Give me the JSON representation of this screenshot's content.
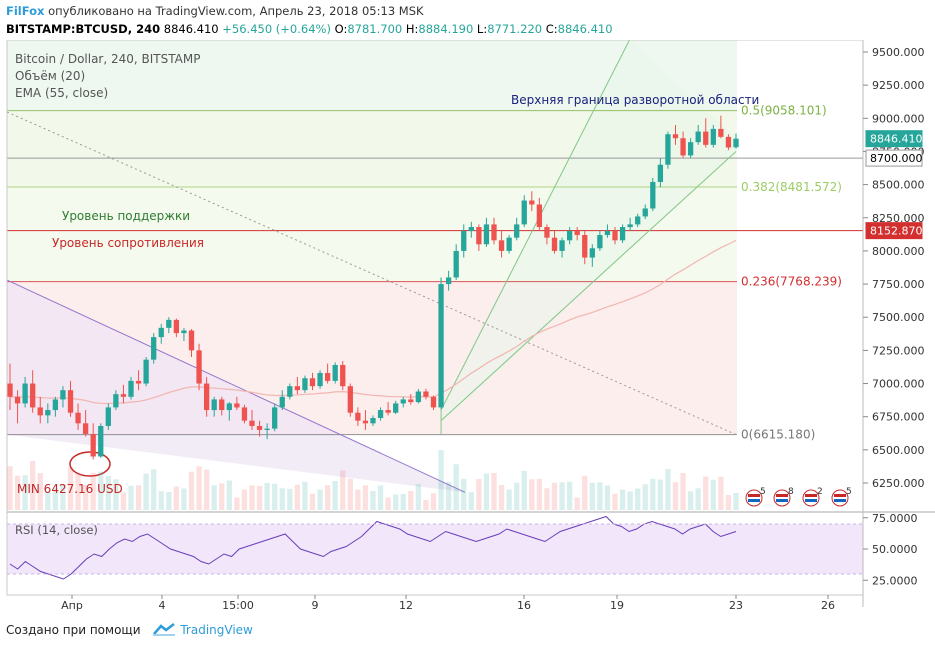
{
  "header": {
    "brand": "FilFox",
    "published": " опубликовано на TradingView.com, Апрель 23, 2018 05:13 MSK",
    "symbol": "BITSTAMP:BTCUSD, 240",
    "last": " 8846.410 ",
    "change": "+56.450 (+0.64%)",
    "o_label": " O:",
    "o_value": "8781.700",
    "h_label": " H:",
    "h_value": "8884.190",
    "l_label": " L:",
    "l_value": "8771.220",
    "c_label": " C:",
    "c_value": "8846.410"
  },
  "legend": {
    "line1": "Bitcoin / Dollar, 240, BITSTAMP",
    "line2": "Объём (20)",
    "line3": "EMA (55, close)"
  },
  "annotations": {
    "upper": "Верхняя граница разворотной области",
    "support": "Уровень поддержки",
    "resistance": "Уровень сопротивления",
    "min": "MIN 6427.16 USD"
  },
  "rsi_label": "RSI (14, close)",
  "footer": {
    "created": "Создано при помощи",
    "brand": "TradingView"
  },
  "colors": {
    "up": "#26a69a",
    "down": "#ef5350",
    "fib_green": "#8bc34a",
    "fib_red": "#d32f2f",
    "support_line": "#e57373",
    "ema": "#f2b5b0",
    "rsi": "#6a3dba",
    "brand": "#2e9cd9"
  },
  "chart_data": {
    "type": "candlestick",
    "symbol": "BITSTAMP:BTCUSD",
    "interval": "240",
    "ylim": [
      6000,
      9600
    ],
    "y_ticks": [
      6250,
      6500,
      6750,
      7000,
      7250,
      7500,
      7750,
      8000,
      8250,
      8500,
      8750,
      9000,
      9250,
      9500
    ],
    "y_tick_labels": [
      "6250.000",
      "6500.000",
      "6750.000",
      "7000.000",
      "7250.000",
      "7500.000",
      "7750.000",
      "8000.000",
      "8250.000",
      "8500.000",
      "8750.000",
      "9000.000",
      "9250.000",
      "9500.000"
    ],
    "x_ticks": [
      "Апр",
      "4",
      "15:00",
      "9",
      "12",
      "16",
      "19",
      "23",
      "26"
    ],
    "price_tags": [
      {
        "label": "8846.410",
        "value": 8846.41,
        "style": "up"
      },
      {
        "label": "8700.000",
        "value": 8700,
        "style": "plain"
      },
      {
        "label": "8152.870",
        "value": 8152.87,
        "style": "down"
      }
    ],
    "fib_levels": [
      {
        "ratio": "0.5",
        "price": 9058.101,
        "label": "0.5(9058.101)",
        "color": "#7cb342"
      },
      {
        "ratio": "0.382",
        "price": 8481.572,
        "label": "0.382(8481.572)",
        "color": "#9ccc65"
      },
      {
        "ratio": "0.236",
        "price": 7768.239,
        "label": "0.236(7768.239)",
        "color": "#d32f2f"
      },
      {
        "ratio": "0",
        "price": 6615.18,
        "label": "0(6615.180)",
        "color": "#777777"
      }
    ],
    "support_level": 8152.87,
    "candles": [
      [
        7000,
        7150,
        6800,
        6900
      ],
      [
        6900,
        6950,
        6700,
        6850
      ],
      [
        6850,
        7050,
        6820,
        7000
      ],
      [
        7000,
        7100,
        6780,
        6820
      ],
      [
        6820,
        6900,
        6700,
        6760
      ],
      [
        6760,
        6850,
        6700,
        6800
      ],
      [
        6800,
        6900,
        6750,
        6880
      ],
      [
        6880,
        6980,
        6820,
        6950
      ],
      [
        6950,
        7020,
        6750,
        6780
      ],
      [
        6780,
        6850,
        6650,
        6700
      ],
      [
        6700,
        6800,
        6600,
        6620
      ],
      [
        6620,
        6700,
        6427,
        6450
      ],
      [
        6450,
        6700,
        6440,
        6680
      ],
      [
        6680,
        6850,
        6650,
        6820
      ],
      [
        6820,
        6950,
        6800,
        6920
      ],
      [
        6920,
        6990,
        6850,
        6900
      ],
      [
        6900,
        7050,
        6880,
        7020
      ],
      [
        7020,
        7100,
        6950,
        7000
      ],
      [
        7000,
        7200,
        6980,
        7180
      ],
      [
        7180,
        7380,
        7150,
        7350
      ],
      [
        7350,
        7450,
        7300,
        7420
      ],
      [
        7420,
        7500,
        7380,
        7480
      ],
      [
        7480,
        7490,
        7350,
        7380
      ],
      [
        7380,
        7420,
        7320,
        7400
      ],
      [
        7400,
        7410,
        7200,
        7250
      ],
      [
        7250,
        7300,
        6950,
        7000
      ],
      [
        7000,
        7050,
        6750,
        6800
      ],
      [
        6800,
        6900,
        6750,
        6880
      ],
      [
        6880,
        6900,
        6760,
        6800
      ],
      [
        6800,
        6860,
        6720,
        6850
      ],
      [
        6850,
        6900,
        6800,
        6820
      ],
      [
        6820,
        6840,
        6700,
        6720
      ],
      [
        6720,
        6800,
        6650,
        6680
      ],
      [
        6680,
        6720,
        6600,
        6650
      ],
      [
        6650,
        6700,
        6580,
        6660
      ],
      [
        6660,
        6850,
        6640,
        6820
      ],
      [
        6820,
        6950,
        6800,
        6900
      ],
      [
        6900,
        7000,
        6880,
        6980
      ],
      [
        6980,
        7050,
        6920,
        6950
      ],
      [
        6950,
        7060,
        6930,
        7040
      ],
      [
        7040,
        7080,
        6950,
        6980
      ],
      [
        6980,
        7100,
        6960,
        7080
      ],
      [
        7080,
        7150,
        7000,
        7020
      ],
      [
        7020,
        7160,
        7000,
        7140
      ],
      [
        7140,
        7170,
        6950,
        6980
      ],
      [
        6980,
        7000,
        6750,
        6780
      ],
      [
        6780,
        6820,
        6680,
        6720
      ],
      [
        6720,
        6800,
        6650,
        6700
      ],
      [
        6700,
        6760,
        6680,
        6740
      ],
      [
        6740,
        6820,
        6720,
        6800
      ],
      [
        6800,
        6860,
        6760,
        6780
      ],
      [
        6780,
        6870,
        6770,
        6850
      ],
      [
        6850,
        6900,
        6820,
        6880
      ],
      [
        6880,
        6920,
        6840,
        6860
      ],
      [
        6860,
        6960,
        6850,
        6940
      ],
      [
        6940,
        6960,
        6880,
        6900
      ],
      [
        6900,
        6910,
        6800,
        6820
      ],
      [
        6820,
        7800,
        6810,
        7750
      ],
      [
        7750,
        7850,
        7700,
        7800
      ],
      [
        7800,
        8050,
        7780,
        8000
      ],
      [
        8000,
        8200,
        7950,
        8150
      ],
      [
        8150,
        8220,
        8100,
        8180
      ],
      [
        8180,
        8200,
        8000,
        8050
      ],
      [
        8050,
        8250,
        8030,
        8200
      ],
      [
        8200,
        8250,
        8050,
        8080
      ],
      [
        8080,
        8150,
        7950,
        8000
      ],
      [
        8000,
        8120,
        7980,
        8100
      ],
      [
        8100,
        8250,
        8080,
        8200
      ],
      [
        8200,
        8420,
        8180,
        8380
      ],
      [
        8380,
        8450,
        8300,
        8350
      ],
      [
        8350,
        8400,
        8150,
        8180
      ],
      [
        8180,
        8200,
        8050,
        8100
      ],
      [
        8100,
        8150,
        7980,
        8000
      ],
      [
        8000,
        8100,
        7950,
        8080
      ],
      [
        8080,
        8180,
        8050,
        8150
      ],
      [
        8150,
        8180,
        8080,
        8120
      ],
      [
        8120,
        8150,
        7900,
        7950
      ],
      [
        7950,
        8050,
        7880,
        8020
      ],
      [
        8020,
        8150,
        8000,
        8120
      ],
      [
        8120,
        8200,
        8100,
        8150
      ],
      [
        8150,
        8180,
        8050,
        8080
      ],
      [
        8080,
        8200,
        8060,
        8180
      ],
      [
        8180,
        8250,
        8150,
        8200
      ],
      [
        8200,
        8280,
        8180,
        8260
      ],
      [
        8260,
        8350,
        8240,
        8320
      ],
      [
        8320,
        8550,
        8300,
        8520
      ],
      [
        8520,
        8700,
        8480,
        8650
      ],
      [
        8650,
        8900,
        8620,
        8880
      ],
      [
        8880,
        8950,
        8800,
        8850
      ],
      [
        8850,
        8900,
        8700,
        8720
      ],
      [
        8720,
        8850,
        8700,
        8820
      ],
      [
        8820,
        8950,
        8800,
        8900
      ],
      [
        8900,
        9000,
        8780,
        8800
      ],
      [
        8800,
        8950,
        8780,
        8920
      ],
      [
        8920,
        9020,
        8850,
        8860
      ],
      [
        8860,
        8880,
        8760,
        8780
      ],
      [
        8781.7,
        8884.19,
        8771.22,
        8846.41
      ]
    ],
    "volume_note": "Объём (20)",
    "ema_note": "EMA (55, close)",
    "rsi": {
      "period": 14,
      "levels": [
        70,
        30
      ],
      "y_ticks": [
        "75.0000",
        "50.0000",
        "25.0000"
      ],
      "values": [
        38,
        34,
        40,
        36,
        32,
        30,
        28,
        26,
        30,
        36,
        42,
        46,
        44,
        50,
        55,
        58,
        56,
        60,
        62,
        58,
        54,
        50,
        48,
        46,
        44,
        40,
        38,
        42,
        46,
        44,
        50,
        52,
        54,
        56,
        58,
        60,
        62,
        56,
        50,
        48,
        46,
        44,
        48,
        50,
        52,
        56,
        60,
        66,
        72,
        70,
        68,
        66,
        62,
        60,
        58,
        56,
        60,
        64,
        62,
        60,
        58,
        56,
        58,
        60,
        62,
        66,
        64,
        62,
        60,
        58,
        56,
        60,
        64,
        66,
        68,
        70,
        72,
        74,
        76,
        70,
        68,
        64,
        66,
        70,
        72,
        70,
        68,
        66,
        62,
        66,
        68,
        70,
        64,
        60,
        62,
        64
      ]
    },
    "badges": [
      "5",
      "8",
      "2",
      "5"
    ]
  }
}
